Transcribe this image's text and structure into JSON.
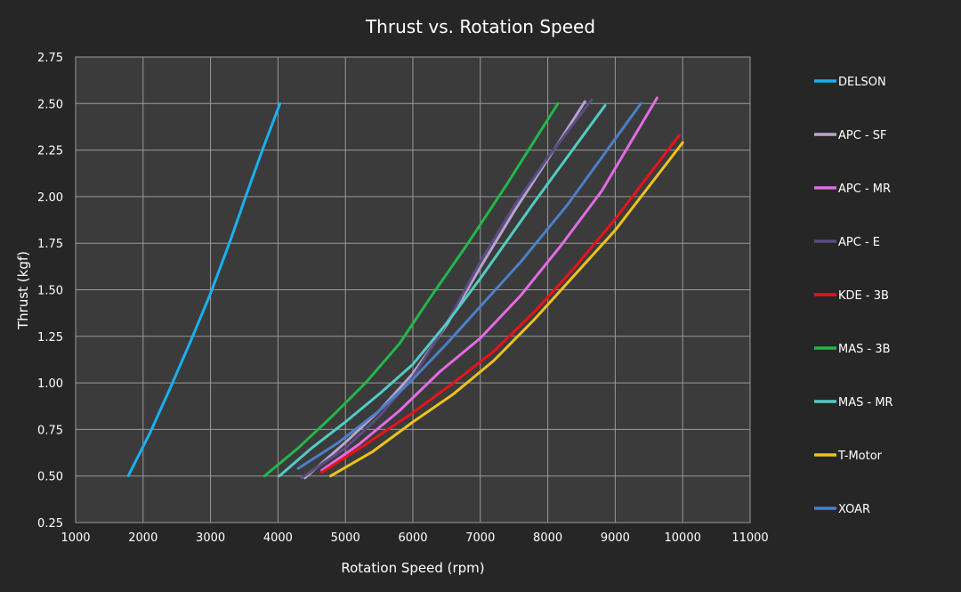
{
  "chart_data": {
    "type": "line",
    "title": "Thrust vs. Rotation Speed",
    "xlabel": "Rotation Speed (rpm)",
    "ylabel": "Thrust (kgf)",
    "xlim": [
      1000,
      11000
    ],
    "ylim": [
      0.25,
      2.75
    ],
    "xticks": [
      "1000",
      "2000",
      "3000",
      "4000",
      "5000",
      "6000",
      "7000",
      "8000",
      "9000",
      "10000",
      "11000"
    ],
    "yticks": [
      "0.25",
      "0.50",
      "0.75",
      "1.00",
      "1.25",
      "1.50",
      "1.75",
      "2.00",
      "2.25",
      "2.50",
      "2.75"
    ],
    "grid": true,
    "legend_position": "right",
    "background": "#3b3b3b",
    "series": [
      {
        "name": "DELSON",
        "color": "#1ab0f0",
        "x": [
          1780,
          2100,
          2400,
          2700,
          3000,
          3300,
          3550,
          3800,
          4030
        ],
        "y": [
          0.5,
          0.73,
          0.97,
          1.22,
          1.48,
          1.77,
          2.03,
          2.28,
          2.5
        ]
      },
      {
        "name": "APC - SF",
        "color": "#b6a5cc",
        "x": [
          4400,
          5000,
          5500,
          6000,
          6500,
          7000,
          7500,
          8000,
          8550
        ],
        "y": [
          0.49,
          0.68,
          0.85,
          1.05,
          1.31,
          1.62,
          1.92,
          2.2,
          2.51
        ]
      },
      {
        "name": "APC - MR",
        "color": "#e36be5",
        "x": [
          4650,
          5200,
          5800,
          6400,
          7000,
          7600,
          8200,
          8800,
          9620
        ],
        "y": [
          0.53,
          0.67,
          0.85,
          1.06,
          1.24,
          1.47,
          1.74,
          2.03,
          2.53
        ]
      },
      {
        "name": "APC - E",
        "color": "#5c4c84",
        "x": [
          4350,
          5000,
          5500,
          6000,
          6500,
          7000,
          7500,
          8000,
          8650
        ],
        "y": [
          0.49,
          0.65,
          0.82,
          1.03,
          1.32,
          1.65,
          1.95,
          2.21,
          2.52
        ]
      },
      {
        "name": "KDE - 3B",
        "color": "#e8131a",
        "x": [
          4650,
          5300,
          6000,
          6600,
          7200,
          7800,
          8400,
          9000,
          9950
        ],
        "y": [
          0.52,
          0.67,
          0.84,
          1.0,
          1.17,
          1.38,
          1.62,
          1.88,
          2.33
        ]
      },
      {
        "name": "MAS - 3B",
        "color": "#22b84a",
        "x": [
          3800,
          4300,
          4800,
          5300,
          5800,
          6300,
          6800,
          7400,
          8150
        ],
        "y": [
          0.5,
          0.65,
          0.82,
          1.0,
          1.21,
          1.48,
          1.74,
          2.07,
          2.5
        ]
      },
      {
        "name": "MAS - MR",
        "color": "#52ccc4",
        "x": [
          4020,
          4500,
          5000,
          5500,
          6000,
          6500,
          7000,
          7800,
          8850
        ],
        "y": [
          0.5,
          0.65,
          0.79,
          0.94,
          1.1,
          1.32,
          1.56,
          1.97,
          2.49
        ]
      },
      {
        "name": "T-Motor",
        "color": "#f0c21b",
        "x": [
          4780,
          5400,
          6000,
          6600,
          7200,
          7800,
          8400,
          9000,
          10000
        ],
        "y": [
          0.5,
          0.63,
          0.79,
          0.94,
          1.12,
          1.34,
          1.58,
          1.82,
          2.29
        ]
      },
      {
        "name": "XOAR",
        "color": "#4d7fc8",
        "x": [
          4300,
          4900,
          5500,
          6000,
          6500,
          7000,
          7600,
          8300,
          9380
        ],
        "y": [
          0.54,
          0.68,
          0.85,
          1.02,
          1.21,
          1.41,
          1.65,
          1.96,
          2.5
        ]
      }
    ]
  }
}
